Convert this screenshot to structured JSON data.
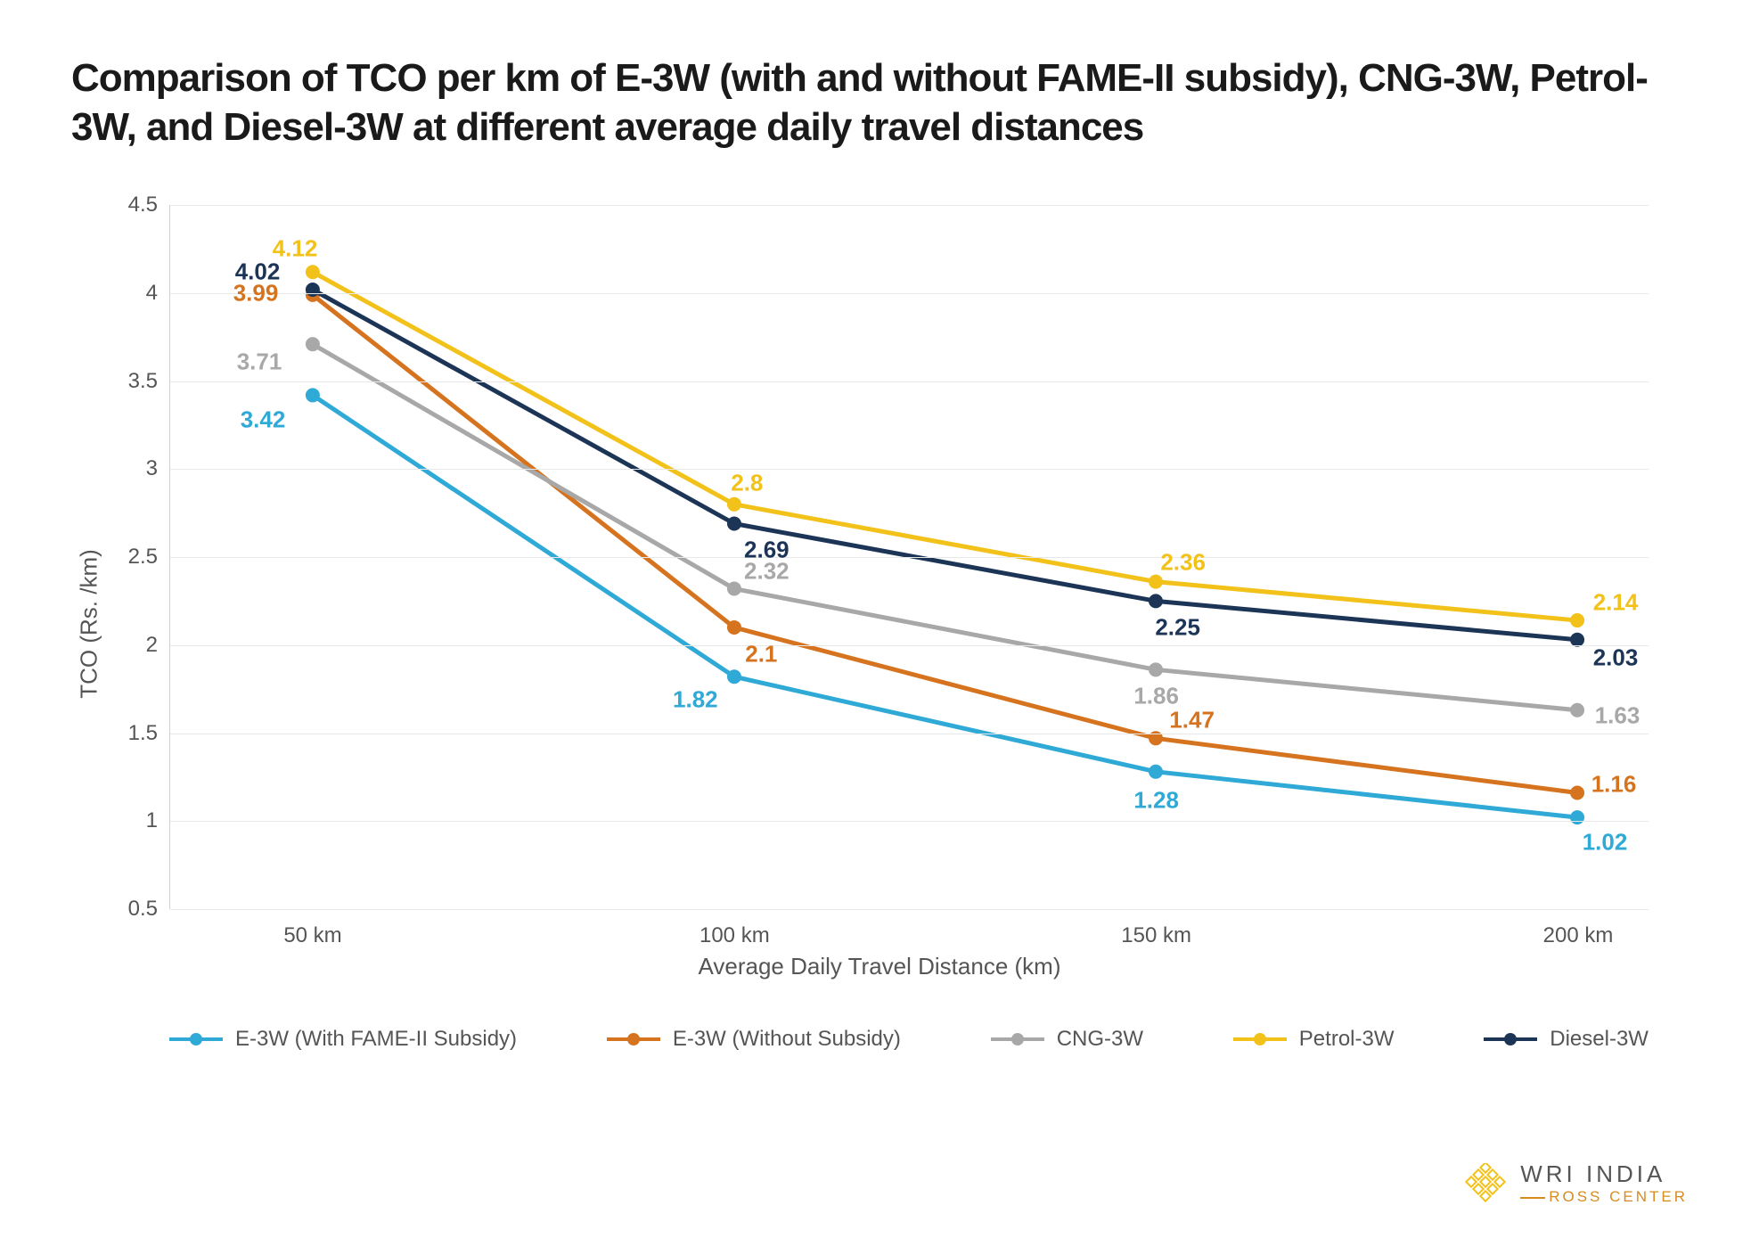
{
  "title": "Comparison of TCO per km of E-3W (with and without FAME-II subsidy), CNG-3W, Petrol-3W, and Diesel-3W at different average daily travel distances",
  "chart": {
    "type": "line",
    "xlabel": "Average Daily Travel Distance (km)",
    "ylabel": "TCO (Rs. /km)",
    "x_categories": [
      "50 km",
      "100 km",
      "150 km",
      "200 km"
    ],
    "ylim": [
      0.5,
      4.5
    ],
    "ytick_step": 0.5,
    "yticks": [
      "0.5",
      "1",
      "1.5",
      "2",
      "2.5",
      "3",
      "3.5",
      "4",
      "4.5"
    ],
    "background_color": "#ffffff",
    "grid_color": "#e8e8e8",
    "axis_color": "#d0d0d0",
    "tick_font_color": "#555555",
    "tick_fontsize": 24,
    "axis_label_fontsize": 26,
    "title_fontsize": 44,
    "title_color": "#1a1a1a",
    "line_width": 5,
    "marker_size": 8,
    "data_label_fontsize": 26,
    "series": [
      {
        "name": "E-3W (With FAME-II Subsidy)",
        "color": "#2fa9d6",
        "values": [
          3.42,
          1.82,
          1.28,
          1.02
        ],
        "label_offsets": [
          [
            -56,
            28
          ],
          [
            -44,
            26
          ],
          [
            0,
            32
          ],
          [
            30,
            28
          ]
        ]
      },
      {
        "name": "E-3W (Without Subsidy)",
        "color": "#d6731f",
        "values": [
          3.99,
          2.1,
          1.47,
          1.16
        ],
        "label_offsets": [
          [
            -64,
            -2
          ],
          [
            30,
            30
          ],
          [
            40,
            -20
          ],
          [
            40,
            -10
          ]
        ]
      },
      {
        "name": "CNG-3W",
        "color": "#a8a8a8",
        "values": [
          3.71,
          2.32,
          1.86,
          1.63
        ],
        "label_offsets": [
          [
            -60,
            20
          ],
          [
            36,
            -20
          ],
          [
            0,
            30
          ],
          [
            44,
            6
          ]
        ]
      },
      {
        "name": "Petrol-3W",
        "color": "#f2c21a",
        "values": [
          4.12,
          2.8,
          2.36,
          2.14
        ],
        "label_offsets": [
          [
            -20,
            -26
          ],
          [
            14,
            -24
          ],
          [
            30,
            -22
          ],
          [
            42,
            -20
          ]
        ]
      },
      {
        "name": "Diesel-3W",
        "color": "#1c3557",
        "values": [
          4.02,
          2.69,
          2.25,
          2.03
        ],
        "label_offsets": [
          [
            -62,
            -20
          ],
          [
            36,
            30
          ],
          [
            24,
            30
          ],
          [
            42,
            20
          ]
        ]
      }
    ]
  },
  "attribution": {
    "line1": "WRI INDIA",
    "line2": "ROSS CENTER",
    "icon_color": "#f2c21a"
  }
}
